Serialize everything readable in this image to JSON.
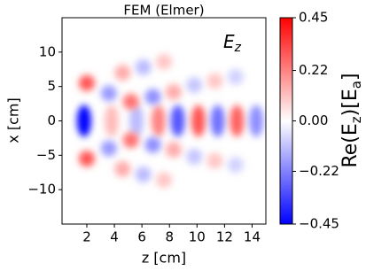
{
  "chart_data": {
    "type": "field",
    "title": "FEM (Elmer)",
    "annotation": [
      "E",
      "z"
    ],
    "xlabel": "z [cm]",
    "ylabel": "x [cm]",
    "colorbar_label": [
      "Re(E",
      "z",
      ")[E",
      "a",
      "]"
    ],
    "xlim": [
      0.2,
      15
    ],
    "ylim": [
      -15,
      15
    ],
    "xticks": [
      2,
      4,
      6,
      8,
      10,
      12,
      14
    ],
    "yticks": [
      {
        "value": -10,
        "label": "−10"
      },
      {
        "value": -5,
        "label": "−5"
      },
      0,
      5,
      10
    ],
    "clim": [
      -0.45,
      0.45
    ],
    "cticks": [
      {
        "value": -0.45,
        "label": "−0.45"
      },
      {
        "value": -0.22,
        "label": "−0.22"
      },
      {
        "value": 0,
        "label": "0.00"
      },
      {
        "value": 0.22,
        "label": "0.22"
      },
      {
        "value": 0.45,
        "label": "0.45"
      }
    ],
    "colormap": [
      "#0000ff",
      "#ffffff",
      "#ff0000"
    ],
    "x": [
      1.8,
      3.8,
      5.6,
      7.2,
      8.6,
      10.1,
      11.5,
      12.9,
      14.3,
      2.0,
      2.0,
      3.6,
      3.6,
      5.2,
      5.2,
      6.8,
      6.8,
      8.3,
      8.3,
      4.6,
      4.6,
      6.1,
      6.1,
      7.6,
      7.6,
      9.8,
      9.8,
      11.3,
      11.3,
      12.8,
      12.8
    ],
    "y": [
      0,
      0,
      0,
      0,
      0,
      0,
      0,
      0,
      0,
      5.5,
      -5.5,
      4.0,
      -4.0,
      2.8,
      -2.8,
      3.5,
      -3.5,
      4.2,
      -4.2,
      7.0,
      -7.0,
      7.8,
      -7.8,
      8.6,
      -8.6,
      5.2,
      -5.2,
      5.8,
      -5.8,
      6.4,
      -6.4
    ],
    "values": [
      -0.45,
      0.12,
      -0.12,
      0.22,
      -0.3,
      0.3,
      -0.25,
      0.28,
      -0.2,
      0.3,
      0.3,
      -0.18,
      -0.18,
      0.25,
      0.25,
      -0.2,
      -0.2,
      0.15,
      0.15,
      0.15,
      0.15,
      -0.12,
      -0.12,
      0.1,
      0.1,
      -0.1,
      -0.1,
      0.1,
      0.1,
      -0.08,
      -0.08
    ]
  }
}
